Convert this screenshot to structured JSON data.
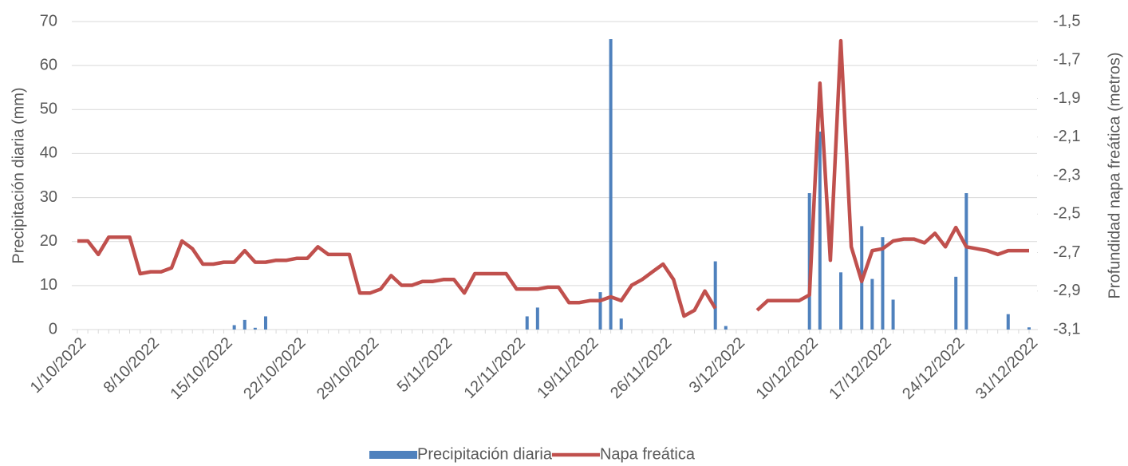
{
  "chart_data": {
    "type": "combo",
    "y_label": "Precipitación diaria (mm)",
    "y2_label": "Profundidad napa freática  (metros)",
    "categories": [
      "1/10/2022",
      null,
      null,
      null,
      null,
      null,
      null,
      "8/10/2022",
      null,
      null,
      null,
      null,
      null,
      null,
      "15/10/2022",
      null,
      null,
      null,
      null,
      null,
      null,
      "22/10/2022",
      null,
      null,
      null,
      null,
      null,
      null,
      "29/10/2022",
      null,
      null,
      null,
      null,
      null,
      null,
      "5/11/2022",
      null,
      null,
      null,
      null,
      null,
      null,
      "12/11/2022",
      null,
      null,
      null,
      null,
      null,
      null,
      "19/11/2022",
      null,
      null,
      null,
      null,
      null,
      null,
      "26/11/2022",
      null,
      null,
      null,
      null,
      null,
      null,
      "3/12/2022",
      null,
      null,
      null,
      null,
      null,
      null,
      "10/12/2022",
      null,
      null,
      null,
      null,
      null,
      null,
      "17/12/2022",
      null,
      null,
      null,
      null,
      null,
      null,
      "24/12/2022",
      null,
      null,
      null,
      null,
      null,
      null,
      "31/12/2022"
    ],
    "series": [
      {
        "name": "Precipitación diaria",
        "type": "bar",
        "color": "#4f81bd",
        "values": [
          0,
          0,
          0,
          0,
          0,
          0,
          0,
          0,
          0,
          0,
          0,
          0,
          0,
          0,
          0,
          1,
          2.2,
          0.4,
          3,
          0,
          0,
          0,
          0,
          0,
          0,
          0,
          0,
          0,
          0,
          0,
          0,
          0,
          0,
          0,
          0,
          0,
          0,
          0,
          0,
          0,
          0,
          0,
          0,
          3,
          5,
          0,
          0,
          0,
          0,
          0,
          8.5,
          66,
          2.5,
          0,
          0,
          0,
          0,
          0,
          0,
          0,
          0,
          15.5,
          0.8,
          0,
          0,
          0,
          0,
          0,
          0,
          0,
          31,
          45,
          0,
          13,
          0,
          23.5,
          11.5,
          21,
          6.8,
          0,
          0,
          0,
          0,
          0,
          12,
          31,
          0,
          0,
          0,
          3.5,
          0,
          0.5
        ]
      },
      {
        "name": "Napa freática",
        "type": "line",
        "axis": "y2",
        "color": "#c0504d",
        "values": [
          -2.64,
          -2.64,
          -2.71,
          -2.62,
          -2.62,
          -2.62,
          -2.81,
          -2.8,
          -2.8,
          -2.78,
          -2.64,
          -2.68,
          -2.76,
          -2.76,
          -2.75,
          -2.75,
          -2.69,
          -2.75,
          -2.75,
          -2.74,
          -2.74,
          -2.73,
          -2.73,
          -2.67,
          -2.71,
          -2.71,
          -2.71,
          -2.91,
          -2.91,
          -2.89,
          -2.82,
          -2.87,
          -2.87,
          -2.85,
          -2.85,
          -2.84,
          -2.84,
          -2.91,
          -2.81,
          -2.81,
          -2.81,
          -2.81,
          -2.89,
          -2.89,
          -2.89,
          -2.88,
          -2.88,
          -2.96,
          -2.96,
          -2.95,
          -2.95,
          -2.93,
          -2.95,
          -2.87,
          -2.84,
          -2.8,
          -2.76,
          -2.84,
          -3.03,
          -3.0,
          -2.9,
          -2.99,
          null,
          null,
          null,
          -3.0,
          -2.95,
          -2.95,
          -2.95,
          -2.95,
          -2.92,
          -1.82,
          -2.74,
          -1.6,
          -2.67,
          -2.85,
          -2.69,
          -2.68,
          -2.64,
          -2.63,
          -2.63,
          -2.65,
          -2.6,
          -2.67,
          -2.57,
          -2.67,
          -2.68,
          -2.69,
          -2.71,
          -2.69,
          -2.69,
          -2.69
        ]
      }
    ],
    "ylim": [
      0,
      70
    ],
    "yticks": [
      0,
      10,
      20,
      30,
      40,
      50,
      60,
      70
    ],
    "y2lim": [
      -3.1,
      -1.5
    ],
    "y2ticks": [
      {
        "value": -3.1,
        "label": "-3,1"
      },
      {
        "value": -2.9,
        "label": "-2,9"
      },
      {
        "value": -2.7,
        "label": "-2,7"
      },
      {
        "value": -2.5,
        "label": "-2,5"
      },
      {
        "value": -2.3,
        "label": "-2,3"
      },
      {
        "value": -2.1,
        "label": "-2,1"
      },
      {
        "value": -1.9,
        "label": "-1,9"
      },
      {
        "value": -1.7,
        "label": "-1,7"
      },
      {
        "value": -1.5,
        "label": "-1,5"
      }
    ],
    "grid": true,
    "legend": "bottom"
  }
}
